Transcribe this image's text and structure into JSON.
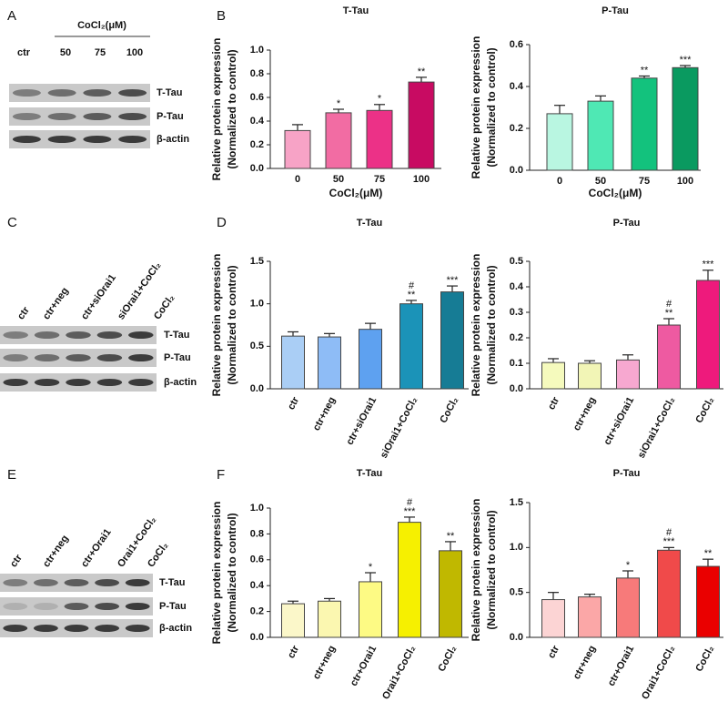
{
  "panel_labels": [
    "A",
    "B",
    "C",
    "D",
    "E",
    "F"
  ],
  "blots": [
    {
      "header": "CoCl₂(μM)",
      "lanes": [
        "ctr",
        "50",
        "75",
        "100"
      ],
      "rows": [
        "T-Tau",
        "P-Tau",
        "β-actin"
      ]
    },
    {
      "lanes": [
        "ctr",
        "ctr+neg",
        "ctr+siOrai1",
        "siOrai1+CoCl₂",
        "CoCl₂"
      ],
      "rows": [
        "T-Tau",
        "P-Tau",
        "β-actin"
      ]
    },
    {
      "lanes": [
        "ctr",
        "ctr+neg",
        "ctr+Orai1",
        "Orai1+CoCl₂",
        "CoCl₂"
      ],
      "rows": [
        "T-Tau",
        "P-Tau",
        "β-actin"
      ]
    }
  ],
  "chart_data": [
    {
      "type": "bar",
      "title": "T-Tau",
      "ylabel": [
        "Relative protein expression",
        "(Normalized to control)"
      ],
      "xlabel": "CoCl₂(μM)",
      "categories": [
        "0",
        "50",
        "75",
        "100"
      ],
      "values": [
        0.32,
        0.47,
        0.49,
        0.73
      ],
      "errors": [
        0.05,
        0.03,
        0.05,
        0.04
      ],
      "colors": [
        "#f7a3c6",
        "#f26ca3",
        "#ec3187",
        "#c80b62"
      ],
      "significance": [
        null,
        "*",
        "*",
        "**"
      ],
      "ylim": [
        0,
        1.0
      ],
      "yticks": [
        {
          "value": 0,
          "label": "0.0"
        },
        0.2,
        0.4,
        0.6,
        0.8,
        {
          "value": 1,
          "label": "1.0"
        }
      ]
    },
    {
      "type": "bar",
      "title": "P-Tau",
      "ylabel": [
        "Relative protein expression",
        "(Normalized to control)"
      ],
      "xlabel": "CoCl₂(μM)",
      "categories": [
        "0",
        "50",
        "75",
        "100"
      ],
      "values": [
        0.27,
        0.33,
        0.44,
        0.49
      ],
      "errors": [
        0.04,
        0.025,
        0.01,
        0.01
      ],
      "colors": [
        "#b9f6e1",
        "#4fe8b4",
        "#13c27d",
        "#0a9a60"
      ],
      "significance": [
        null,
        null,
        "**",
        "***"
      ],
      "ylim": [
        0,
        0.6
      ],
      "yticks": [
        {
          "value": 0,
          "label": "0.0"
        },
        0.2,
        0.4,
        0.6
      ]
    },
    {
      "type": "bar",
      "title": "T-Tau",
      "ylabel": [
        "Relative protein expression",
        "(Normalized to control)"
      ],
      "categories": [
        "ctr",
        "ctr+neg",
        "ctr+siOrai1",
        "siOrai1+CoCl₂",
        "CoCl₂"
      ],
      "values": [
        0.62,
        0.61,
        0.7,
        1.0,
        1.14
      ],
      "errors": [
        0.05,
        0.04,
        0.07,
        0.04,
        0.07
      ],
      "colors": [
        "#aacef5",
        "#8ebcf6",
        "#5ea1f0",
        "#1b93b8",
        "#167c95"
      ],
      "significance": [
        null,
        null,
        null,
        [
          "#",
          "**"
        ],
        "***"
      ],
      "ylim": [
        0,
        1.5
      ],
      "yticks": [
        {
          "value": 0,
          "label": "0.0"
        },
        0.5,
        {
          "value": 1,
          "label": "1.0"
        },
        1.5
      ]
    },
    {
      "type": "bar",
      "title": "P-Tau",
      "ylabel": [
        "Relative protein expression",
        "(Normalized to control)"
      ],
      "categories": [
        "ctr",
        "ctr+neg",
        "ctr+siOrai1",
        "siOrai1+CoCl₂",
        "CoCl₂"
      ],
      "values": [
        0.103,
        0.1,
        0.113,
        0.25,
        0.425
      ],
      "errors": [
        0.015,
        0.01,
        0.02,
        0.025,
        0.04
      ],
      "colors": [
        "#f5fabd",
        "#f2f5b6",
        "#f7a8d0",
        "#ee5aa1",
        "#ee1a7c"
      ],
      "significance": [
        null,
        null,
        null,
        [
          "#",
          "**"
        ],
        "***"
      ],
      "ylim": [
        0,
        0.5
      ],
      "yticks": [
        {
          "value": 0,
          "label": "0.0"
        },
        0.1,
        0.2,
        0.3,
        0.4,
        0.5
      ]
    },
    {
      "type": "bar",
      "title": "T-Tau",
      "ylabel": [
        "Relative protein expression",
        "(Normalized to control)"
      ],
      "categories": [
        "ctr",
        "ctr+neg",
        "ctr+Orai1",
        "Orai1+CoCl₂",
        "CoCl₂"
      ],
      "values": [
        0.26,
        0.28,
        0.43,
        0.89,
        0.67
      ],
      "errors": [
        0.02,
        0.02,
        0.07,
        0.04,
        0.07
      ],
      "colors": [
        "#fbf7c9",
        "#fbf7b0",
        "#fdfa84",
        "#f6f000",
        "#c0b800"
      ],
      "significance": [
        null,
        null,
        "*",
        [
          "#",
          "***"
        ],
        "**"
      ],
      "ylim": [
        0,
        1.0
      ],
      "yticks": [
        {
          "value": 0,
          "label": "0.0"
        },
        0.2,
        0.4,
        0.6,
        0.8,
        {
          "value": 1,
          "label": "1.0"
        }
      ]
    },
    {
      "type": "bar",
      "title": "P-Tau",
      "ylabel": [
        "Relative protein expression",
        "(Normalized to control)"
      ],
      "categories": [
        "ctr",
        "ctr+neg",
        "ctr+Orai1",
        "Orai1+CoCl₂",
        "CoCl₂"
      ],
      "values": [
        0.42,
        0.45,
        0.66,
        0.97,
        0.79
      ],
      "errors": [
        0.08,
        0.03,
        0.08,
        0.03,
        0.08
      ],
      "colors": [
        "#fcd4d4",
        "#fba7a7",
        "#f77a7a",
        "#f04a4a",
        "#ea0000"
      ],
      "significance": [
        null,
        null,
        "*",
        [
          "#",
          "***"
        ],
        "**"
      ],
      "ylim": [
        0,
        1.5
      ],
      "yticks": [
        {
          "value": 0,
          "label": "0.0"
        },
        0.5,
        {
          "value": 1,
          "label": "1.0"
        },
        1.5
      ]
    }
  ]
}
